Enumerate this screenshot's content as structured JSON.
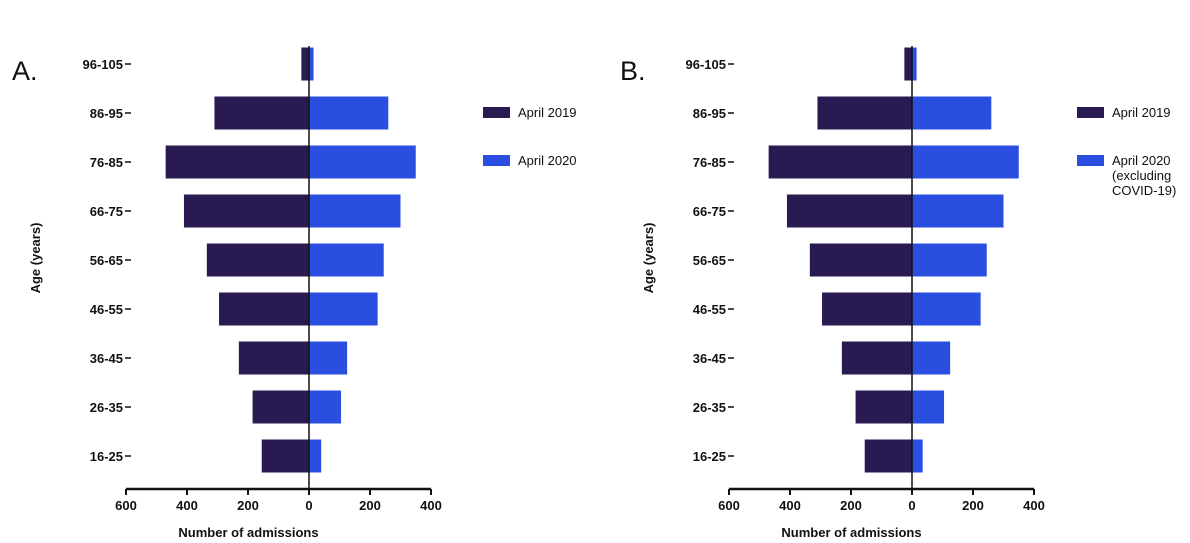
{
  "chart_data": [
    {
      "type": "bar",
      "orientation": "horizontal",
      "layout": "population-pyramid",
      "panel_label": "A.",
      "categories": [
        "96-105",
        "86-95",
        "76-85",
        "66-75",
        "56-65",
        "46-55",
        "36-45",
        "26-35",
        "16-25"
      ],
      "series": [
        {
          "name": "April 2019",
          "color": "#2a1a52",
          "direction": "left",
          "values": [
            25,
            310,
            470,
            410,
            335,
            295,
            230,
            185,
            155
          ]
        },
        {
          "name": "April 2020",
          "color": "#2a4fe0",
          "direction": "right",
          "values": [
            15,
            260,
            350,
            300,
            245,
            225,
            125,
            105,
            40
          ]
        }
      ],
      "xlabel": "Number of admissions",
      "ylabel": "Age (years)",
      "x_left_range": [
        600,
        0
      ],
      "x_right_range": [
        0,
        400
      ],
      "x_ticks_left": [
        "600",
        "400",
        "200",
        "0"
      ],
      "x_ticks_right": [
        "200",
        "400"
      ],
      "legend_position": "right",
      "grid": false
    },
    {
      "type": "bar",
      "orientation": "horizontal",
      "layout": "population-pyramid",
      "panel_label": "B.",
      "categories": [
        "96-105",
        "86-95",
        "76-85",
        "66-75",
        "56-65",
        "46-55",
        "36-45",
        "26-35",
        "16-25"
      ],
      "series": [
        {
          "name": "April 2019",
          "color": "#2a1a52",
          "direction": "left",
          "values": [
            25,
            310,
            470,
            410,
            335,
            295,
            230,
            185,
            155
          ]
        },
        {
          "name": "April 2020\n(excluding\nCOVID-19)",
          "color": "#2a4fe0",
          "direction": "right",
          "values": [
            15,
            260,
            350,
            300,
            245,
            225,
            125,
            105,
            35
          ]
        }
      ],
      "xlabel": "Number of admissions",
      "ylabel": "Age (years)",
      "x_left_range": [
        600,
        0
      ],
      "x_right_range": [
        0,
        400
      ],
      "x_ticks_left": [
        "600",
        "400",
        "200",
        "0"
      ],
      "x_ticks_right": [
        "200",
        "400"
      ],
      "legend_position": "right",
      "grid": false
    }
  ]
}
